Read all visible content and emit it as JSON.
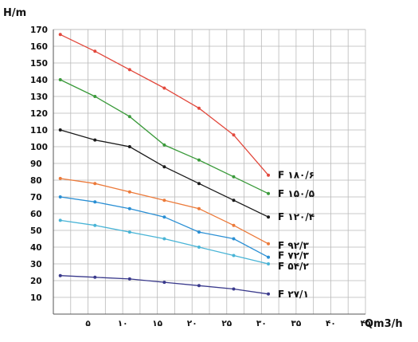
{
  "chart_data": {
    "type": "line",
    "ylabel": "H/m",
    "xlabel": "Qm3/h",
    "xlim": [
      0,
      45
    ],
    "ylim": [
      0,
      170
    ],
    "grid": true,
    "legend": "right-end labels",
    "y_ticks": [
      {
        "value": 10,
        "label": "10"
      },
      {
        "value": 20,
        "label": "20"
      },
      {
        "value": 30,
        "label": "30"
      },
      {
        "value": 40,
        "label": "40"
      },
      {
        "value": 50,
        "label": "50"
      },
      {
        "value": 60,
        "label": "60"
      },
      {
        "value": 70,
        "label": "70"
      },
      {
        "value": 80,
        "label": "80"
      },
      {
        "value": 90,
        "label": "90"
      },
      {
        "value": 100,
        "label": "100"
      },
      {
        "value": 110,
        "label": "110"
      },
      {
        "value": 120,
        "label": "120"
      },
      {
        "value": 130,
        "label": "130"
      },
      {
        "value": 140,
        "label": "140"
      },
      {
        "value": 150,
        "label": "150"
      },
      {
        "value": 160,
        "label": "160"
      },
      {
        "value": 170,
        "label": "170"
      }
    ],
    "x_ticks": [
      {
        "value": 5,
        "label": "۵"
      },
      {
        "value": 10,
        "label": "۱۰"
      },
      {
        "value": 15,
        "label": "۱۵"
      },
      {
        "value": 20,
        "label": "۲۰"
      },
      {
        "value": 25,
        "label": "۲۵"
      },
      {
        "value": 30,
        "label": "۳۰"
      },
      {
        "value": 35,
        "label": "۳۵"
      },
      {
        "value": 40,
        "label": "۴۰"
      },
      {
        "value": 45,
        "label": "۴۵"
      }
    ],
    "x": [
      1,
      6,
      11,
      16,
      21,
      26,
      31
    ],
    "series": [
      {
        "name": "F ۱۸۰/۶",
        "color": "#e2483c",
        "values": [
          167,
          157,
          146,
          135,
          123,
          107,
          83
        ]
      },
      {
        "name": "F ۱۵۰/۵",
        "color": "#3a9a3a",
        "values": [
          140,
          130,
          118,
          101,
          92,
          82,
          72
        ]
      },
      {
        "name": "F ۱۲۰/۴",
        "color": "#1a1a1a",
        "values": [
          110,
          104,
          100,
          88,
          78,
          68,
          58
        ]
      },
      {
        "name": "F ۹۲/۳",
        "color": "#ec7a3a",
        "values": [
          81,
          78,
          73,
          68,
          63,
          53,
          42
        ]
      },
      {
        "name": "F ۷۲/۳",
        "color": "#2a8fd4",
        "values": [
          70,
          67,
          63,
          58,
          49,
          45,
          34
        ]
      },
      {
        "name": "F ۵۴/۲",
        "color": "#48b4d6",
        "values": [
          56,
          53,
          49,
          45,
          40,
          35,
          30
        ]
      },
      {
        "name": "F ۲۷/۱",
        "color": "#3a3a8c",
        "values": [
          23,
          22,
          21,
          19,
          17,
          15,
          12
        ]
      }
    ]
  }
}
